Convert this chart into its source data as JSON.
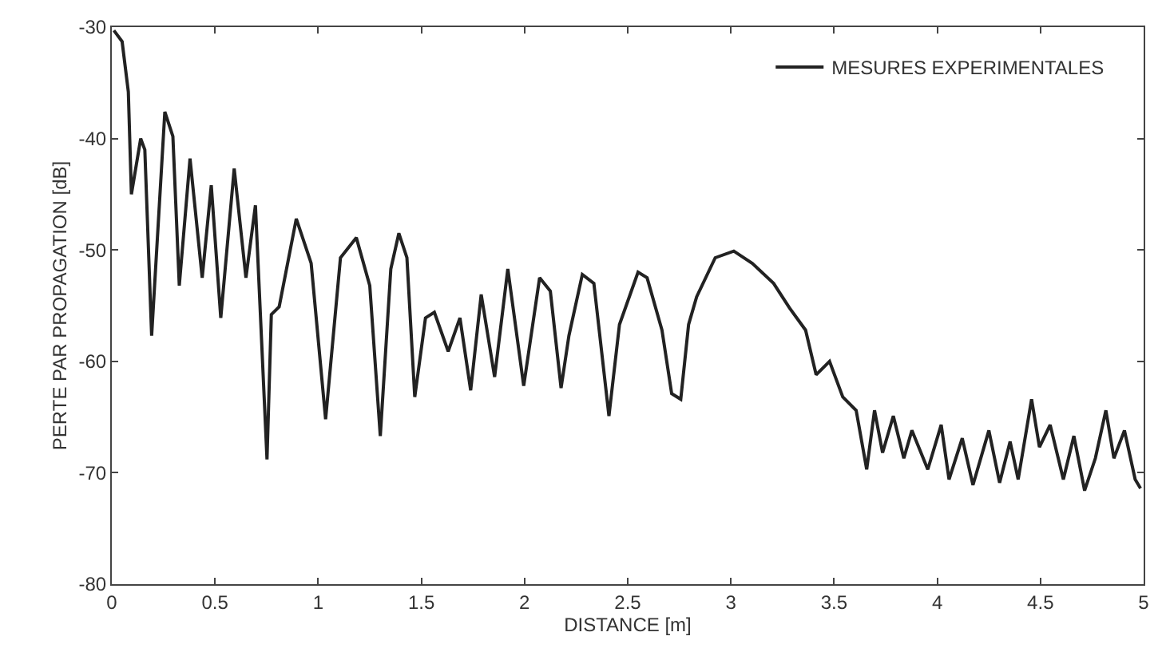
{
  "chart_data": {
    "type": "line",
    "xlabel": "DISTANCE [m]",
    "ylabel": "PERTE PAR PROPAGATION [dB]",
    "xlim": [
      0,
      5
    ],
    "xticks": [
      0,
      0.5,
      1,
      1.5,
      2,
      2.5,
      3,
      3.5,
      4,
      4.5,
      5
    ],
    "ylim": [
      -80,
      -30
    ],
    "yticks": [
      -80,
      -70,
      -60,
      -50,
      -40,
      -30
    ],
    "legend": "top right",
    "marker": "none",
    "line_style": "solid",
    "series": [
      {
        "name": "MESURES EXPERIMENTALES",
        "color": "#222222",
        "x": [
          0.01,
          0.05,
          0.08,
          0.095,
          0.14,
          0.16,
          0.193,
          0.257,
          0.296,
          0.327,
          0.379,
          0.438,
          0.482,
          0.528,
          0.593,
          0.65,
          0.696,
          0.752,
          0.773,
          0.811,
          0.894,
          0.966,
          1.036,
          1.108,
          1.185,
          1.25,
          1.301,
          1.352,
          1.391,
          1.43,
          1.468,
          1.52,
          1.563,
          1.63,
          1.687,
          1.739,
          1.79,
          1.855,
          1.919,
          1.996,
          2.073,
          2.125,
          2.177,
          2.215,
          2.28,
          2.336,
          2.409,
          2.46,
          2.55,
          2.594,
          2.666,
          2.713,
          2.757,
          2.795,
          2.834,
          2.924,
          3.014,
          3.104,
          3.207,
          3.284,
          3.362,
          3.413,
          3.478,
          3.542,
          3.607,
          3.658,
          3.696,
          3.735,
          3.787,
          3.838,
          3.877,
          3.954,
          4.019,
          4.057,
          4.121,
          4.173,
          4.25,
          4.302,
          4.353,
          4.392,
          4.457,
          4.495,
          4.547,
          4.611,
          4.662,
          4.714,
          4.766,
          4.817,
          4.856,
          4.907,
          4.959,
          4.985
        ],
        "values": [
          -30.3,
          -31.3,
          -35.8,
          -45,
          -40,
          -41,
          -57.7,
          -37.6,
          -39.8,
          -53.2,
          -41.8,
          -52.5,
          -44.2,
          -56.1,
          -42.7,
          -52.5,
          -46,
          -68.8,
          -55.8,
          -55.1,
          -47.2,
          -51.2,
          -65.2,
          -50.7,
          -48.9,
          -53.2,
          -66.7,
          -51.7,
          -48.5,
          -50.7,
          -63.2,
          -56.1,
          -55.6,
          -59.1,
          -56.1,
          -62.6,
          -54,
          -61.4,
          -51.7,
          -62.2,
          -52.5,
          -53.7,
          -62.4,
          -57.7,
          -52.2,
          -53,
          -64.9,
          -56.7,
          -52,
          -52.5,
          -57.2,
          -62.9,
          -63.4,
          -56.7,
          -54.2,
          -50.7,
          -50.1,
          -51.2,
          -53,
          -55.2,
          -57.2,
          -61.2,
          -60,
          -63.2,
          -64.4,
          -69.7,
          -64.4,
          -68.2,
          -64.9,
          -68.7,
          -66.2,
          -69.7,
          -65.7,
          -70.6,
          -66.9,
          -71.1,
          -66.2,
          -70.9,
          -67.2,
          -70.6,
          -63.4,
          -67.7,
          -65.7,
          -70.6,
          -66.7,
          -71.6,
          -68.7,
          -64.4,
          -68.7,
          -66.2,
          -70.6,
          -71.4
        ]
      }
    ]
  }
}
